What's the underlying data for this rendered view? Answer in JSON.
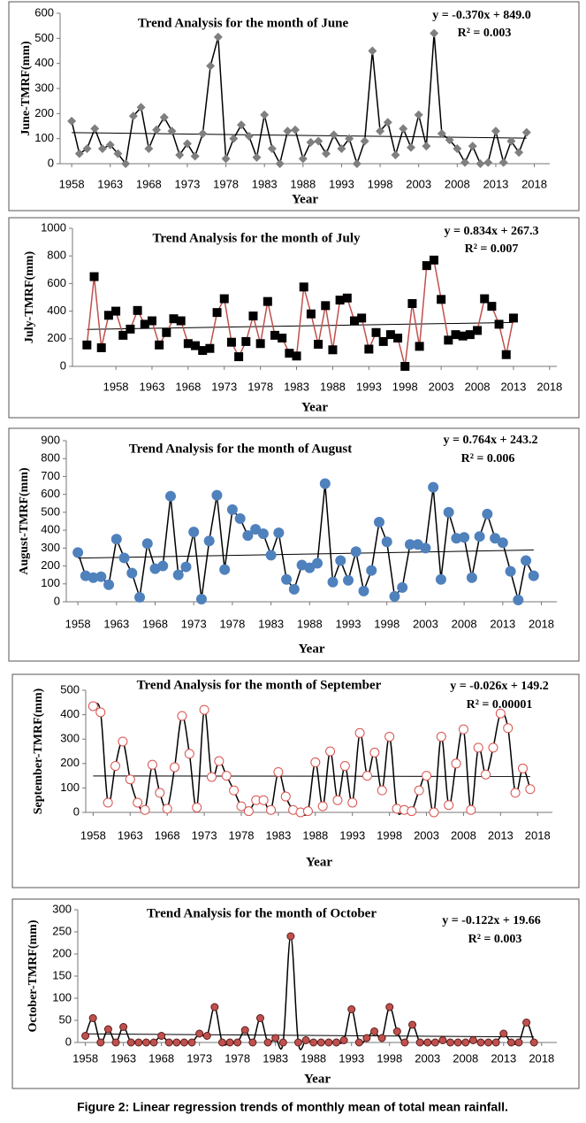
{
  "caption": "Figure 2: Linear regression trends of monthly mean of total mean rainfall.",
  "chart_data": [
    {
      "type": "line",
      "title": "Trend Analysis for the month of June",
      "y_label": "June-TMRF(mm)",
      "x_label": "Year",
      "equation": "y = -0.370x + 849.0",
      "r_squared": "R² = 0.003",
      "x": [
        1958,
        1959,
        1960,
        1961,
        1962,
        1963,
        1964,
        1965,
        1966,
        1967,
        1968,
        1969,
        1970,
        1971,
        1972,
        1973,
        1974,
        1975,
        1976,
        1977,
        1978,
        1979,
        1980,
        1981,
        1982,
        1983,
        1984,
        1985,
        1986,
        1987,
        1988,
        1989,
        1990,
        1991,
        1992,
        1993,
        1994,
        1995,
        1996,
        1997,
        1998,
        1999,
        2000,
        2001,
        2002,
        2003,
        2004,
        2005,
        2006,
        2007,
        2008,
        2009,
        2010,
        2011,
        2012,
        2013,
        2014,
        2015,
        2016,
        2017
      ],
      "series": [
        {
          "line_color": "#000000",
          "marker_color": "#7f7f7f",
          "marker": "diamond",
          "smooth": false,
          "values": [
            170,
            40,
            60,
            140,
            60,
            75,
            40,
            0,
            190,
            225,
            60,
            135,
            185,
            130,
            35,
            80,
            30,
            120,
            390,
            505,
            20,
            100,
            155,
            110,
            25,
            195,
            60,
            0,
            130,
            135,
            20,
            85,
            90,
            40,
            115,
            60,
            100,
            0,
            90,
            450,
            130,
            165,
            35,
            140,
            65,
            195,
            70,
            520,
            120,
            95,
            60,
            5,
            70,
            0,
            5,
            130,
            5,
            90,
            45,
            125
          ]
        }
      ],
      "trendline": {
        "x": [
          1958,
          2017
        ],
        "values": [
          124,
          102
        ],
        "color": "#000000"
      },
      "xlim": [
        1956.5,
        2020
      ],
      "ylim": [
        0,
        600
      ],
      "xticks": [
        1958,
        1963,
        1968,
        1973,
        1978,
        1983,
        1988,
        1993,
        1998,
        2003,
        2008,
        2013,
        2018
      ],
      "yticks": [
        0,
        100,
        200,
        300,
        400,
        500,
        600
      ]
    },
    {
      "type": "line",
      "title": "Trend Analysis for the month of July",
      "y_label": "July-TMRF(mm)",
      "x_label": "Year",
      "equation": "y = 0.834x + 267.3",
      "r_squared": "R² = 0.007",
      "x": [
        1954,
        1955,
        1956,
        1957,
        1958,
        1959,
        1960,
        1961,
        1962,
        1963,
        1964,
        1965,
        1966,
        1967,
        1968,
        1969,
        1970,
        1971,
        1972,
        1973,
        1974,
        1975,
        1976,
        1977,
        1978,
        1979,
        1980,
        1981,
        1982,
        1983,
        1984,
        1985,
        1986,
        1987,
        1988,
        1989,
        1990,
        1991,
        1992,
        1993,
        1994,
        1995,
        1996,
        1997,
        1998,
        1999,
        2000,
        2001,
        2002,
        2003,
        2004,
        2005,
        2006,
        2007,
        2008,
        2009,
        2010,
        2011,
        2012,
        2013
      ],
      "series": [
        {
          "line_color": "#c0504d",
          "marker_color": "#000000",
          "marker": "square",
          "smooth": false,
          "values": [
            155,
            650,
            135,
            370,
            400,
            225,
            270,
            405,
            305,
            330,
            155,
            245,
            345,
            330,
            165,
            150,
            115,
            130,
            390,
            490,
            175,
            70,
            180,
            365,
            165,
            470,
            225,
            205,
            95,
            75,
            575,
            380,
            160,
            440,
            120,
            480,
            495,
            330,
            350,
            125,
            245,
            180,
            230,
            205,
            0,
            455,
            145,
            730,
            770,
            485,
            190,
            230,
            220,
            230,
            260,
            490,
            435,
            305,
            85,
            350
          ]
        }
      ],
      "trendline": {
        "x": [
          1954,
          2013
        ],
        "values": [
          268,
          318
        ],
        "color": "#000000"
      },
      "xlim": [
        1952,
        2019
      ],
      "ylim": [
        0,
        1000
      ],
      "xticks": [
        1958,
        1963,
        1968,
        1973,
        1978,
        1983,
        1988,
        1993,
        1998,
        2003,
        2008,
        2013,
        2018
      ],
      "yticks": [
        0,
        200,
        400,
        600,
        800,
        1000
      ]
    },
    {
      "type": "line",
      "title": "Trend Analysis for the month of August",
      "y_label": "August-TMRF(mm)",
      "x_label": "Year",
      "equation": "y = 0.764x + 243.2",
      "r_squared": "R² = 0.006",
      "x": [
        1958,
        1959,
        1960,
        1961,
        1962,
        1963,
        1964,
        1965,
        1966,
        1967,
        1968,
        1969,
        1970,
        1971,
        1972,
        1973,
        1974,
        1975,
        1976,
        1977,
        1978,
        1979,
        1980,
        1981,
        1982,
        1983,
        1984,
        1985,
        1986,
        1987,
        1988,
        1989,
        1990,
        1991,
        1992,
        1993,
        1994,
        1995,
        1996,
        1997,
        1998,
        1999,
        2000,
        2001,
        2002,
        2003,
        2004,
        2005,
        2006,
        2007,
        2008,
        2009,
        2010,
        2011,
        2012,
        2013,
        2014,
        2015,
        2016,
        2017
      ],
      "series": [
        {
          "line_color": "#000000",
          "marker_color": "#4f81bd",
          "marker": "circle",
          "smooth": false,
          "values": [
            275,
            145,
            135,
            140,
            95,
            350,
            245,
            160,
            25,
            325,
            185,
            200,
            590,
            150,
            195,
            390,
            15,
            340,
            595,
            180,
            515,
            465,
            370,
            405,
            380,
            260,
            385,
            125,
            70,
            205,
            190,
            215,
            660,
            110,
            230,
            120,
            280,
            60,
            175,
            445,
            335,
            30,
            80,
            320,
            320,
            300,
            640,
            125,
            500,
            355,
            360,
            135,
            365,
            490,
            355,
            330,
            170,
            10,
            230,
            145
          ]
        }
      ],
      "trendline": {
        "x": [
          1958,
          2017
        ],
        "values": [
          244,
          289
        ],
        "color": "#000000"
      },
      "xlim": [
        1956.5,
        2020
      ],
      "ylim": [
        0,
        900
      ],
      "xticks": [
        1958,
        1963,
        1968,
        1973,
        1978,
        1983,
        1988,
        1993,
        1998,
        2003,
        2008,
        2013,
        2018
      ],
      "yticks": [
        0,
        100,
        200,
        300,
        400,
        500,
        600,
        700,
        800,
        900
      ]
    },
    {
      "type": "line",
      "title": "Trend Analysis for the month of September",
      "y_label": "September-TMRF(mm)",
      "x_label": "Year",
      "equation": "y = -0.026x + 149.2",
      "r_squared": "R² = 0.00001",
      "x": [
        1958,
        1959,
        1960,
        1961,
        1962,
        1963,
        1964,
        1965,
        1966,
        1967,
        1968,
        1969,
        1970,
        1971,
        1972,
        1973,
        1974,
        1975,
        1976,
        1977,
        1978,
        1979,
        1980,
        1981,
        1982,
        1983,
        1984,
        1985,
        1986,
        1987,
        1988,
        1989,
        1990,
        1991,
        1992,
        1993,
        1994,
        1995,
        1996,
        1997,
        1998,
        1999,
        2000,
        2001,
        2002,
        2003,
        2004,
        2005,
        2006,
        2007,
        2008,
        2009,
        2010,
        2011,
        2012,
        2013,
        2014,
        2015,
        2016,
        2017
      ],
      "series": [
        {
          "line_color": "#000000",
          "marker_color": "#d9534f",
          "marker": "hollow-circle",
          "smooth": true,
          "values": [
            435,
            410,
            40,
            190,
            290,
            135,
            40,
            10,
            195,
            80,
            15,
            185,
            395,
            240,
            20,
            420,
            145,
            210,
            150,
            90,
            25,
            5,
            50,
            50,
            10,
            165,
            65,
            10,
            0,
            5,
            205,
            25,
            250,
            50,
            190,
            40,
            325,
            150,
            245,
            90,
            310,
            15,
            10,
            5,
            90,
            150,
            0,
            310,
            30,
            200,
            340,
            10,
            265,
            155,
            265,
            405,
            345,
            80,
            180,
            95
          ]
        }
      ],
      "trendline": {
        "x": [
          1958,
          2017
        ],
        "values": [
          149,
          147
        ],
        "color": "#000000"
      },
      "xlim": [
        1957,
        2020
      ],
      "ylim": [
        0,
        500
      ],
      "xticks": [
        1958,
        1963,
        1968,
        1973,
        1978,
        1983,
        1988,
        1993,
        1998,
        2003,
        2008,
        2013,
        2018
      ],
      "yticks": [
        0,
        100,
        200,
        300,
        400,
        500
      ]
    },
    {
      "type": "line",
      "title": "Trend Analysis for the month of October",
      "y_label": "October-TMRF(mm)",
      "x_label": "Year",
      "equation": "y = -0.122x + 19.66",
      "r_squared": "R² = 0.003",
      "x": [
        1958,
        1959,
        1960,
        1961,
        1962,
        1963,
        1964,
        1965,
        1966,
        1967,
        1968,
        1969,
        1970,
        1971,
        1972,
        1973,
        1974,
        1975,
        1976,
        1977,
        1978,
        1979,
        1980,
        1981,
        1982,
        1983,
        1984,
        1985,
        1986,
        1987,
        1988,
        1989,
        1990,
        1991,
        1992,
        1993,
        1994,
        1995,
        1996,
        1997,
        1998,
        1999,
        2000,
        2001,
        2002,
        2003,
        2004,
        2005,
        2006,
        2007,
        2008,
        2009,
        2010,
        2011,
        2012,
        2013,
        2014,
        2015,
        2016,
        2017
      ],
      "series": [
        {
          "line_color": "#000000",
          "marker_color": "#c0504d",
          "marker": "circle",
          "smooth": true,
          "values": [
            15,
            55,
            0,
            30,
            0,
            35,
            0,
            0,
            0,
            0,
            15,
            0,
            0,
            0,
            0,
            20,
            15,
            80,
            0,
            0,
            0,
            28,
            0,
            55,
            0,
            10,
            0,
            240,
            0,
            5,
            0,
            0,
            0,
            0,
            5,
            75,
            0,
            10,
            25,
            10,
            80,
            25,
            0,
            40,
            0,
            0,
            0,
            5,
            0,
            0,
            0,
            5,
            0,
            0,
            0,
            20,
            0,
            0,
            45,
            0
          ]
        }
      ],
      "trendline": {
        "x": [
          1958,
          2017
        ],
        "values": [
          19.5,
          12.4
        ],
        "color": "#000000"
      },
      "xlim": [
        1957,
        2020
      ],
      "ylim": [
        0,
        300
      ],
      "xticks": [
        1958,
        1963,
        1968,
        1973,
        1978,
        1983,
        1988,
        1993,
        1998,
        2003,
        2008,
        2013,
        2018
      ],
      "yticks": [
        0,
        50,
        100,
        150,
        200,
        250,
        300
      ]
    }
  ]
}
